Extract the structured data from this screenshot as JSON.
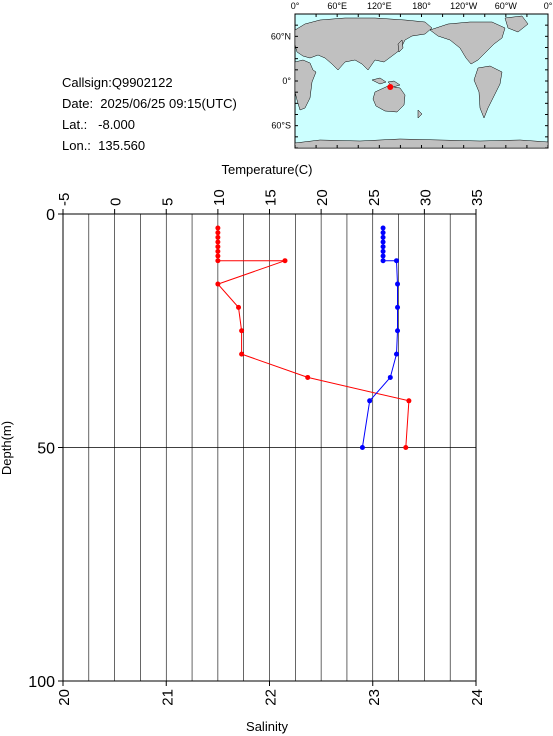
{
  "info": {
    "callsign": "Callsign:Q9902122",
    "date": "Date:  2025/06/25 09:15(UTC)",
    "lat": "Lat.:   -8.000",
    "lon": "Lon.:  135.560"
  },
  "map": {
    "lon_labels": [
      "0°",
      "60°E",
      "120°E",
      "180°",
      "120°W",
      "60°W",
      "0°"
    ],
    "lat_labels": [
      "60°N",
      "0°",
      "60°S"
    ],
    "ocean_color": "#ccffff",
    "land_color": "#c0c0c0",
    "marker_color": "#ff0000",
    "marker": {
      "lon": 135.56,
      "lat": -8.0
    }
  },
  "chart_data": {
    "type": "line",
    "ylabel": "Depth(m)",
    "ylim": [
      0,
      100
    ],
    "yticks": [
      "0",
      "50",
      "100"
    ],
    "y_reversed": true,
    "top_axis": {
      "label": "Temperature(C)",
      "lim": [
        -5,
        35
      ],
      "ticks": [
        "-5",
        "0",
        "5",
        "10",
        "15",
        "20",
        "25",
        "30",
        "35"
      ]
    },
    "bottom_axis": {
      "label": "Salinity",
      "lim": [
        20,
        24
      ],
      "ticks": [
        "20",
        "21",
        "22",
        "23",
        "24"
      ]
    },
    "series": [
      {
        "color": "#ff0000",
        "axis": "top",
        "points": [
          [
            10.0,
            3
          ],
          [
            10.0,
            4
          ],
          [
            10.0,
            5
          ],
          [
            10.0,
            6
          ],
          [
            10.0,
            7
          ],
          [
            10.0,
            8
          ],
          [
            10.0,
            9
          ],
          [
            10.0,
            10
          ],
          [
            16.5,
            10
          ],
          [
            10.0,
            15
          ],
          [
            12.0,
            20
          ],
          [
            12.3,
            25
          ],
          [
            12.3,
            30
          ],
          [
            18.7,
            35
          ],
          [
            28.5,
            40
          ],
          [
            28.2,
            50
          ]
        ]
      },
      {
        "color": "#0000ff",
        "axis": "bottom",
        "points": [
          [
            23.1,
            3
          ],
          [
            23.1,
            4
          ],
          [
            23.1,
            5
          ],
          [
            23.1,
            6
          ],
          [
            23.1,
            7
          ],
          [
            23.1,
            8
          ],
          [
            23.1,
            9
          ],
          [
            23.1,
            10
          ],
          [
            23.23,
            10
          ],
          [
            23.24,
            15
          ],
          [
            23.24,
            20
          ],
          [
            23.24,
            25
          ],
          [
            23.23,
            30
          ],
          [
            23.17,
            35
          ],
          [
            22.97,
            40
          ],
          [
            22.9,
            50
          ]
        ]
      }
    ]
  }
}
